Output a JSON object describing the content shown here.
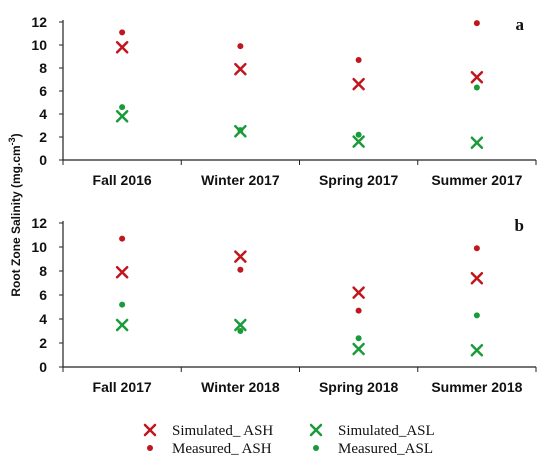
{
  "ylabel": "Root Zone Salinity  (mg.cm",
  "ylabel_sup": "-3",
  "ylabel_close": ")",
  "legend": {
    "sim_ash": "Simulated_ ASH",
    "sim_asl": "Simulated_ASL",
    "meas_ash": "Measured_ ASH",
    "meas_asl": "Measured_ASL"
  },
  "colors": {
    "ash": "#c0161d",
    "asl": "#1a9b3a"
  },
  "chart_data": [
    {
      "type": "scatter",
      "panel_label": "a",
      "categories": [
        "Fall 2016",
        "Winter 2017",
        "Spring 2017",
        "Summer 2017"
      ],
      "yticks": [
        "0",
        "2",
        "4",
        "6",
        "8",
        "10",
        "12"
      ],
      "ylim": [
        0,
        12
      ],
      "series": [
        {
          "name": "Simulated_ ASH",
          "marker": "x",
          "color": "#c0161d",
          "values": [
            9.8,
            7.9,
            6.6,
            7.2
          ]
        },
        {
          "name": "Measured_ ASH",
          "marker": "dot",
          "color": "#c0161d",
          "values": [
            11.1,
            9.9,
            8.7,
            11.9
          ]
        },
        {
          "name": "Simulated_ASL",
          "marker": "x",
          "color": "#1a9b3a",
          "values": [
            3.8,
            2.5,
            1.6,
            1.5
          ]
        },
        {
          "name": "Measured_ASL",
          "marker": "dot",
          "color": "#1a9b3a",
          "values": [
            4.6,
            2.6,
            2.2,
            6.3
          ]
        }
      ]
    },
    {
      "type": "scatter",
      "panel_label": "b",
      "categories": [
        "Fall 2017",
        "Winter  2018",
        "Spring  2018",
        "Summer  2018"
      ],
      "yticks": [
        "0",
        "2",
        "4",
        "6",
        "8",
        "10",
        "12"
      ],
      "ylim": [
        0,
        12
      ],
      "series": [
        {
          "name": "Simulated_ ASH",
          "marker": "x",
          "color": "#c0161d",
          "values": [
            7.9,
            9.2,
            6.2,
            7.4
          ]
        },
        {
          "name": "Measured_ ASH",
          "marker": "dot",
          "color": "#c0161d",
          "values": [
            10.7,
            8.1,
            4.7,
            9.9
          ]
        },
        {
          "name": "Simulated_ASL",
          "marker": "x",
          "color": "#1a9b3a",
          "values": [
            3.5,
            3.5,
            1.5,
            1.4
          ]
        },
        {
          "name": "Measured_ASL",
          "marker": "dot",
          "color": "#1a9b3a",
          "values": [
            5.2,
            3.0,
            2.4,
            4.3
          ]
        }
      ]
    }
  ]
}
